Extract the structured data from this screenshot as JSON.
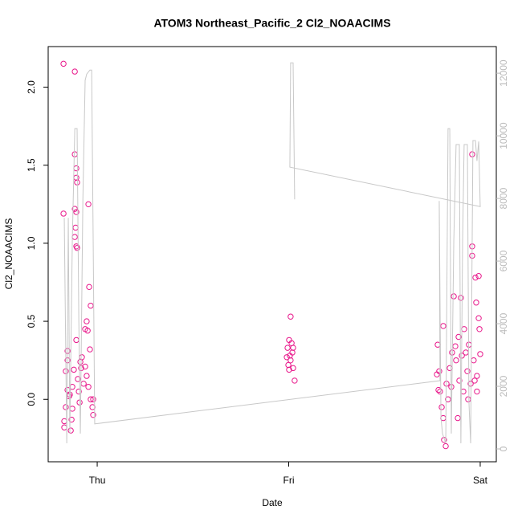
{
  "chart_data": {
    "type": "scatter",
    "title": "ATOM3 Northeast_Pacific_2 Cl2_NOAACIMS",
    "xlabel": "Date",
    "ylabel": "Cl2_NOAACIMS",
    "xlim": [
      -0.256,
      2.084
    ],
    "xticks": [
      {
        "value": 0,
        "label": "Thu"
      },
      {
        "value": 1,
        "label": "Fri"
      },
      {
        "value": 2,
        "label": "Sat"
      }
    ],
    "ylim": [
      -0.4,
      2.26
    ],
    "yticks": [
      {
        "value": 0,
        "label": "0.0"
      },
      0.5,
      {
        "value": 1,
        "label": "1.0"
      },
      1.5,
      {
        "value": 2,
        "label": "2.0"
      }
    ],
    "y2lim": [
      -410,
      12850
    ],
    "y2ticks": [
      0,
      2000,
      4000,
      6000,
      8000,
      10000,
      12000
    ],
    "y2color": "#bbbbbb",
    "series": [
      {
        "type": "scatter",
        "color": "#e8168a",
        "x": [
          -0.176,
          -0.176,
          -0.117,
          -0.117,
          -0.109,
          -0.109,
          -0.105,
          -0.117,
          -0.109,
          -0.113,
          -0.117,
          -0.109,
          -0.105,
          -0.046,
          -0.042,
          -0.034,
          -0.038,
          -0.055,
          -0.063,
          -0.05,
          -0.109,
          -0.172,
          -0.172,
          -0.164,
          -0.155,
          -0.155,
          -0.147,
          -0.138,
          -0.134,
          -0.13,
          -0.122,
          -0.101,
          -0.096,
          -0.088,
          -0.08,
          -0.071,
          -0.063,
          -0.055,
          -0.046,
          -0.034,
          -0.025,
          -0.021,
          -0.021,
          -0.164,
          -0.155,
          -0.143,
          -0.13,
          -0.092,
          -0.084,
          1.01,
          1.002,
          1.015,
          0.994,
          1.019,
          1.006,
          0.99,
          0.998,
          1.023,
          1.002,
          1.031,
          1.01,
          1.023,
          1.778,
          1.786,
          1.79,
          1.799,
          1.807,
          1.811,
          1.82,
          1.807,
          1.824,
          1.832,
          1.841,
          1.849,
          1.862,
          1.87,
          1.874,
          1.883,
          1.891,
          1.899,
          1.904,
          1.912,
          1.916,
          1.925,
          1.933,
          1.941,
          1.95,
          1.958,
          1.958,
          1.958,
          1.966,
          1.975,
          1.979,
          1.992,
          1.992,
          1.996,
          2.0,
          1.983,
          1.983,
          1.774,
          1.782,
          1.853,
          1.887,
          1.937,
          1.971
        ],
        "values": [
          2.15,
          1.19,
          2.1,
          1.57,
          1.48,
          1.42,
          1.39,
          1.22,
          1.2,
          1.1,
          1.04,
          0.98,
          0.97,
          1.25,
          0.72,
          0.6,
          0.32,
          0.5,
          0.45,
          0.44,
          0.38,
          -0.18,
          -0.14,
          0.18,
          0.25,
          0.31,
          0.02,
          -0.2,
          -0.13,
          0.08,
          0.19,
          0.13,
          0.05,
          0.24,
          0.27,
          0.1,
          0.21,
          0.15,
          0.08,
          0.0,
          -0.05,
          -0.1,
          0.0,
          -0.05,
          0.06,
          0.03,
          -0.06,
          -0.02,
          0.2,
          0.53,
          0.38,
          0.36,
          0.33,
          0.3,
          0.28,
          0.27,
          0.22,
          0.2,
          0.19,
          0.12,
          0.25,
          0.33,
          0.35,
          0.18,
          0.05,
          -0.05,
          -0.12,
          -0.26,
          -0.3,
          0.47,
          0.1,
          0.0,
          0.2,
          0.08,
          0.66,
          0.34,
          0.25,
          -0.12,
          0.12,
          0.65,
          0.28,
          0.05,
          0.45,
          0.3,
          0.18,
          0.35,
          0.1,
          1.57,
          0.98,
          0.92,
          0.25,
          0.78,
          0.62,
          0.79,
          0.52,
          0.45,
          0.29,
          0.15,
          0.05,
          0.16,
          0.06,
          0.3,
          0.4,
          0.0,
          0.12
        ]
      },
      {
        "type": "line",
        "axis": "y2",
        "color": "#c8c8c8",
        "x": [
          -0.172,
          -0.159,
          -0.151,
          -0.143,
          -0.13,
          -0.117,
          -0.105,
          -0.096,
          -0.088,
          -0.075,
          -0.063,
          -0.055,
          -0.038,
          -0.029,
          -0.021,
          -0.013,
          1.79,
          1.786,
          1.795,
          1.803,
          1.82,
          1.832,
          1.841,
          1.849,
          1.862,
          1.874,
          1.891,
          1.899,
          1.908,
          1.916,
          1.933,
          1.941,
          1.95,
          1.962,
          1.975,
          1.983,
          1.992,
          2.0,
          1.006,
          1.01,
          1.023,
          1.031
        ],
        "values": [
          7380,
          180,
          7380,
          490,
          6640,
          10230,
          10230,
          4080,
          490,
          7920,
          11770,
          11970,
          12100,
          12100,
          6640,
          800,
          2180,
          7920,
          1000,
          490,
          180,
          10230,
          10230,
          490,
          6640,
          9720,
          9720,
          180,
          6640,
          9720,
          9720,
          1510,
          180,
          9850,
          9850,
          9200,
          9820,
          7740,
          9000,
          12330,
          12330,
          7970
        ]
      }
    ]
  }
}
